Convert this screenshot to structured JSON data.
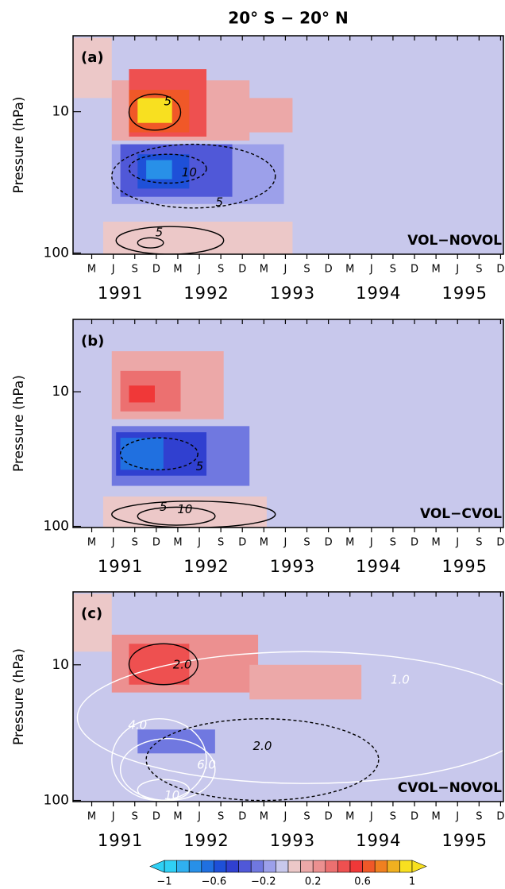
{
  "title": "20° S − 20° N",
  "colorbar": {
    "levels": [
      -1,
      -0.9,
      -0.8,
      -0.7,
      -0.6,
      -0.5,
      -0.4,
      -0.3,
      -0.2,
      -0.1,
      0,
      0.1,
      0.2,
      0.3,
      0.4,
      0.5,
      0.6,
      0.7,
      0.8,
      0.9,
      1
    ],
    "colors": [
      "#2fd0f5",
      "#30b0f0",
      "#2890e8",
      "#2070e0",
      "#1e50d8",
      "#3040d0",
      "#5058d8",
      "#7078e0",
      "#9ca0ea",
      "#c8c8ec",
      "#ecc8c8",
      "#eca8a8",
      "#ec9090",
      "#ec7070",
      "#ee5050",
      "#f03838",
      "#f05828",
      "#f08020",
      "#f0b020",
      "#f8e020"
    ],
    "ticks": [
      {
        "value": -1,
        "label": "−1"
      },
      {
        "value": -0.6,
        "label": "−0.6"
      },
      {
        "value": -0.2,
        "label": "−0.2"
      },
      0.2,
      0.6,
      1
    ]
  },
  "chart_data": [
    {
      "type": "heatmap",
      "panel": "(a)",
      "experiment": "VOL−NOVOL",
      "ylabel": "Pressure (hPa)",
      "log_y": true,
      "xlim": [
        1990.95,
        1995.95
      ],
      "ylim": [
        102,
        2.9
      ],
      "yticks": [
        10,
        100
      ],
      "background": -0.1,
      "xticks": [
        {
          "value": 1991.167,
          "label": "M"
        },
        {
          "value": 1991.417,
          "label": "J"
        },
        {
          "value": 1991.667,
          "label": "S"
        },
        {
          "value": 1991.917,
          "label": "D"
        },
        {
          "value": 1992.167,
          "label": "M"
        },
        {
          "value": 1992.417,
          "label": "J"
        },
        {
          "value": 1992.667,
          "label": "S"
        },
        {
          "value": 1992.917,
          "label": "D"
        },
        {
          "value": 1993.167,
          "label": "M"
        },
        {
          "value": 1993.417,
          "label": "J"
        },
        {
          "value": 1993.667,
          "label": "S"
        },
        {
          "value": 1993.917,
          "label": "D"
        },
        {
          "value": 1994.167,
          "label": "M"
        },
        {
          "value": 1994.417,
          "label": "J"
        },
        {
          "value": 1994.667,
          "label": "S"
        },
        {
          "value": 1994.917,
          "label": "D"
        },
        {
          "value": 1995.167,
          "label": "M"
        },
        {
          "value": 1995.417,
          "label": "J"
        },
        {
          "value": 1995.667,
          "label": "S"
        },
        {
          "value": 1995.917,
          "label": "D"
        }
      ],
      "year_labels": [
        {
          "value": 1991.5,
          "label": "1991"
        },
        {
          "value": 1992.5,
          "label": "1992"
        },
        {
          "value": 1993.5,
          "label": "1993"
        },
        {
          "value": 1994.5,
          "label": "1994"
        },
        {
          "value": 1995.5,
          "label": "1995"
        }
      ],
      "regions": [
        {
          "t": [
            1990.95,
            1991.4
          ],
          "p": [
            3,
            8
          ],
          "value": 0.05
        },
        {
          "t": [
            1991.3,
            1993.5
          ],
          "p": [
            60,
            102
          ],
          "value": 0.05
        },
        {
          "t": [
            1991.4,
            1993.0
          ],
          "p": [
            6,
            16
          ],
          "value": 0.15
        },
        {
          "t": [
            1992.5,
            1993.5
          ],
          "p": [
            8,
            14
          ],
          "value": 0.1
        },
        {
          "t": [
            1991.6,
            1992.5
          ],
          "p": [
            5,
            15
          ],
          "value": 0.4
        },
        {
          "t": [
            1991.6,
            1992.3
          ],
          "p": [
            7,
            14
          ],
          "value": 0.65
        },
        {
          "t": [
            1991.7,
            1992.1
          ],
          "p": [
            8,
            12
          ],
          "value": 0.9
        },
        {
          "t": [
            1991.4,
            1993.4
          ],
          "p": [
            17,
            45
          ],
          "value": -0.2
        },
        {
          "t": [
            1991.5,
            1992.8
          ],
          "p": [
            17,
            40
          ],
          "value": -0.35
        },
        {
          "t": [
            1991.7,
            1992.3
          ],
          "p": [
            20,
            35
          ],
          "value": -0.6
        },
        {
          "t": [
            1991.8,
            1992.1
          ],
          "p": [
            22,
            30
          ],
          "value": -0.8
        }
      ],
      "contours": [
        {
          "value": 5,
          "style": "solid",
          "color": "black",
          "t": [
            1991.6,
            1992.2
          ],
          "p": [
            7.5,
            13.5
          ],
          "label_at": [
            1992.05,
            8.5
          ]
        },
        {
          "value": 5,
          "style": "dashed",
          "color": "black",
          "t": [
            1991.4,
            1993.3
          ],
          "p": [
            17,
            48
          ],
          "label_at": [
            1992.65,
            44
          ]
        },
        {
          "value": 10,
          "style": "dashed",
          "color": "black",
          "t": [
            1991.6,
            1992.5
          ],
          "p": [
            20,
            32
          ],
          "label_at": [
            1992.3,
            27
          ]
        },
        {
          "value": 5,
          "style": "solid",
          "color": "black",
          "t": [
            1991.45,
            1992.7
          ],
          "p": [
            65,
            102
          ],
          "label_at": [
            1991.95,
            72
          ]
        },
        {
          "value": 10,
          "style": "solid",
          "color": "black",
          "t": [
            1991.7,
            1992.0
          ],
          "p": [
            78,
            92
          ]
        }
      ]
    },
    {
      "type": "heatmap",
      "panel": "(b)",
      "experiment": "VOL−CVOL",
      "ylabel": "Pressure (hPa)",
      "log_y": true,
      "xlim": [
        1990.95,
        1995.95
      ],
      "ylim": [
        102,
        2.9
      ],
      "yticks": [
        10,
        100
      ],
      "background": -0.1,
      "xticks": [
        {
          "value": 1991.167,
          "label": "M"
        },
        {
          "value": 1991.417,
          "label": "J"
        },
        {
          "value": 1991.667,
          "label": "S"
        },
        {
          "value": 1991.917,
          "label": "D"
        },
        {
          "value": 1992.167,
          "label": "M"
        },
        {
          "value": 1992.417,
          "label": "J"
        },
        {
          "value": 1992.667,
          "label": "S"
        },
        {
          "value": 1992.917,
          "label": "D"
        },
        {
          "value": 1993.167,
          "label": "M"
        },
        {
          "value": 1993.417,
          "label": "J"
        },
        {
          "value": 1993.667,
          "label": "S"
        },
        {
          "value": 1993.917,
          "label": "D"
        },
        {
          "value": 1994.167,
          "label": "M"
        },
        {
          "value": 1994.417,
          "label": "J"
        },
        {
          "value": 1994.667,
          "label": "S"
        },
        {
          "value": 1994.917,
          "label": "D"
        },
        {
          "value": 1995.167,
          "label": "M"
        },
        {
          "value": 1995.417,
          "label": "J"
        },
        {
          "value": 1995.667,
          "label": "S"
        },
        {
          "value": 1995.917,
          "label": "D"
        }
      ],
      "year_labels": [
        {
          "value": 1991.5,
          "label": "1991"
        },
        {
          "value": 1992.5,
          "label": "1992"
        },
        {
          "value": 1993.5,
          "label": "1993"
        },
        {
          "value": 1994.5,
          "label": "1994"
        },
        {
          "value": 1995.5,
          "label": "1995"
        }
      ],
      "regions": [
        {
          "t": [
            1991.3,
            1993.2
          ],
          "p": [
            60,
            102
          ],
          "value": 0.05
        },
        {
          "t": [
            1991.4,
            1992.7
          ],
          "p": [
            5,
            16
          ],
          "value": 0.15
        },
        {
          "t": [
            1991.5,
            1992.2
          ],
          "p": [
            7,
            14
          ],
          "value": 0.35
        },
        {
          "t": [
            1991.6,
            1991.9
          ],
          "p": [
            9,
            12
          ],
          "value": 0.5
        },
        {
          "t": [
            1991.4,
            1993.0
          ],
          "p": [
            18,
            50
          ],
          "value": -0.25
        },
        {
          "t": [
            1991.45,
            1992.5
          ],
          "p": [
            20,
            42
          ],
          "value": -0.45
        },
        {
          "t": [
            1991.5,
            1992.0
          ],
          "p": [
            22,
            38
          ],
          "value": -0.7
        }
      ],
      "contours": [
        {
          "value": 5,
          "style": "dashed",
          "color": "black",
          "t": [
            1991.5,
            1992.4
          ],
          "p": [
            22,
            38
          ],
          "label_at": [
            1992.42,
            36
          ]
        },
        {
          "value": 5,
          "style": "solid",
          "color": "black",
          "t": [
            1991.4,
            1993.3
          ],
          "p": [
            65,
            102
          ],
          "label_at": [
            1992.0,
            72
          ]
        },
        {
          "value": 10,
          "style": "solid",
          "color": "black",
          "t": [
            1991.7,
            1992.6
          ],
          "p": [
            72,
            98
          ],
          "label_at": [
            1992.25,
            75
          ]
        }
      ]
    },
    {
      "type": "heatmap",
      "panel": "(c)",
      "experiment": "CVOL−NOVOL",
      "ylabel": "Pressure (hPa)",
      "log_y": true,
      "xlim": [
        1990.95,
        1995.95
      ],
      "ylim": [
        102,
        2.9
      ],
      "yticks": [
        10,
        100
      ],
      "background": -0.1,
      "xticks": [
        {
          "value": 1991.167,
          "label": "M"
        },
        {
          "value": 1991.417,
          "label": "J"
        },
        {
          "value": 1991.667,
          "label": "S"
        },
        {
          "value": 1991.917,
          "label": "D"
        },
        {
          "value": 1992.167,
          "label": "M"
        },
        {
          "value": 1992.417,
          "label": "J"
        },
        {
          "value": 1992.667,
          "label": "S"
        },
        {
          "value": 1992.917,
          "label": "D"
        },
        {
          "value": 1993.167,
          "label": "M"
        },
        {
          "value": 1993.417,
          "label": "J"
        },
        {
          "value": 1993.667,
          "label": "S"
        },
        {
          "value": 1993.917,
          "label": "D"
        },
        {
          "value": 1994.167,
          "label": "M"
        },
        {
          "value": 1994.417,
          "label": "J"
        },
        {
          "value": 1994.667,
          "label": "S"
        },
        {
          "value": 1994.917,
          "label": "D"
        },
        {
          "value": 1995.167,
          "label": "M"
        },
        {
          "value": 1995.417,
          "label": "J"
        },
        {
          "value": 1995.667,
          "label": "S"
        },
        {
          "value": 1995.917,
          "label": "D"
        }
      ],
      "year_labels": [
        {
          "value": 1991.5,
          "label": "1991"
        },
        {
          "value": 1992.5,
          "label": "1992"
        },
        {
          "value": 1993.5,
          "label": "1993"
        },
        {
          "value": 1994.5,
          "label": "1994"
        },
        {
          "value": 1995.5,
          "label": "1995"
        }
      ],
      "regions": [
        {
          "t": [
            1990.95,
            1991.4
          ],
          "p": [
            3,
            8
          ],
          "value": 0.05
        },
        {
          "t": [
            1991.4,
            1993.1
          ],
          "p": [
            6,
            16
          ],
          "value": 0.2
        },
        {
          "t": [
            1993.0,
            1994.3
          ],
          "p": [
            10,
            18
          ],
          "value": 0.1
        },
        {
          "t": [
            1991.6,
            1992.3
          ],
          "p": [
            7,
            14
          ],
          "value": 0.45
        },
        {
          "t": [
            1991.7,
            1992.6
          ],
          "p": [
            30,
            45
          ],
          "value": -0.3
        }
      ],
      "contours": [
        {
          "value": 1,
          "label": "1.0",
          "style": "solid",
          "color": "white",
          "t": [
            1991.0,
            1996.3
          ],
          "p": [
            8,
            75
          ],
          "label_at": [
            1994.75,
            13
          ]
        },
        {
          "value": 4,
          "label": "4.0",
          "style": "solid",
          "color": "white",
          "t": [
            1991.4,
            1992.5
          ],
          "p": [
            25,
            100
          ],
          "label_at": [
            1991.7,
            28
          ]
        },
        {
          "value": 6,
          "label": "6.0",
          "style": "solid",
          "color": "white",
          "t": [
            1991.5,
            1992.6
          ],
          "p": [
            35,
            100
          ],
          "label_at": [
            1992.5,
            55
          ]
        },
        {
          "value": 10,
          "style": "solid",
          "color": "white",
          "t": [
            1991.7,
            1992.3
          ],
          "p": [
            70,
            100
          ],
          "label_at": [
            1992.1,
            92
          ]
        },
        {
          "value": 2,
          "label": "2.0",
          "style": "solid",
          "color": "black",
          "t": [
            1991.6,
            1992.4
          ],
          "p": [
            7,
            14
          ],
          "label_at": [
            1992.22,
            10
          ]
        },
        {
          "value": 2,
          "label": "2.0",
          "style": "dashed",
          "color": "black",
          "t": [
            1991.8,
            1994.5
          ],
          "p": [
            25,
            100
          ],
          "label_at": [
            1993.15,
            40
          ]
        }
      ]
    }
  ]
}
